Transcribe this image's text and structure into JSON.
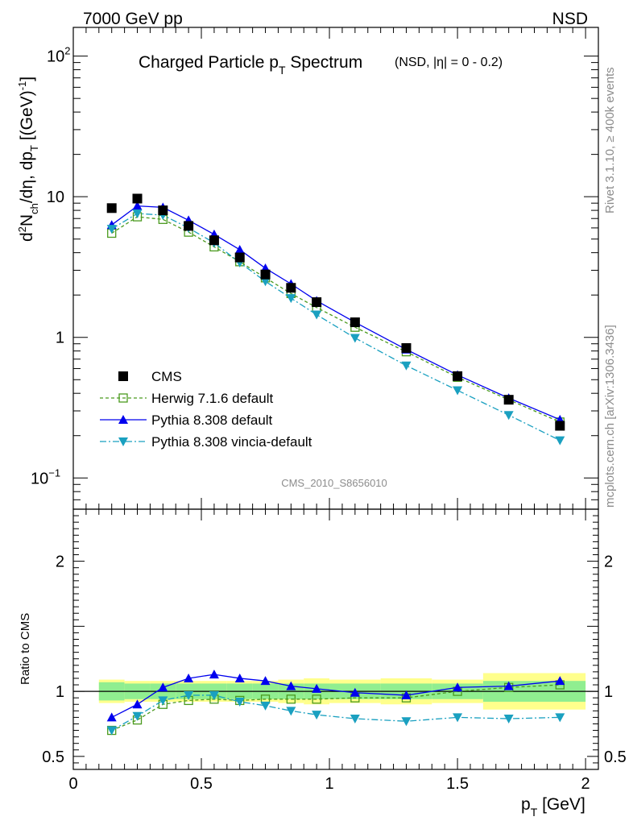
{
  "header": {
    "left": "7000 GeV pp",
    "right": "NSD"
  },
  "side_text": {
    "rivet": "Rivet 3.1.10, ≥ 400k events",
    "mcplots": "mcplots.cern.ch [arXiv:1306.3436]"
  },
  "chart_data": {
    "type": "line",
    "title_main": "Charged Particle p",
    "title_sub": "T",
    "title_main2": " Spectrum",
    "title_extra": "(NSD, |η| =   0 - 0.2)",
    "watermark": "CMS_2010_S8656010",
    "y_scale": "log",
    "ylim": [
      0.06,
      160
    ],
    "xlim": [
      0,
      2.05
    ],
    "ylabel": "d²N_ch/dη, dp_T [(GeV)⁻¹]",
    "xlabel": "p_T [GeV]",
    "x_ticks": [
      "0",
      "0.5",
      "1",
      "1.5",
      "2"
    ],
    "y_tick_labels": [
      "10",
      "1"
    ],
    "legend_position": "bottom-left",
    "x": [
      0.15,
      0.25,
      0.35,
      0.45,
      0.55,
      0.65,
      0.75,
      0.85,
      0.95,
      1.1,
      1.3,
      1.5,
      1.7,
      1.9
    ],
    "series": [
      {
        "name": "CMS",
        "color": "#000000",
        "marker": "square-filled",
        "values": [
          8.3,
          9.7,
          8.0,
          6.2,
          4.9,
          3.7,
          2.8,
          2.25,
          1.78,
          1.28,
          0.84,
          0.53,
          0.36,
          0.235
        ]
      },
      {
        "name": "Herwig 7.1.6 default",
        "color": "#4a9a1e",
        "marker": "square-open",
        "line": "dashed",
        "values": [
          5.5,
          7.2,
          6.9,
          5.6,
          4.4,
          3.45,
          2.65,
          2.05,
          1.63,
          1.18,
          0.79,
          0.52,
          0.36,
          0.25
        ]
      },
      {
        "name": "Pythia 8.308 default",
        "color": "#0000ee",
        "marker": "triangle-up",
        "line": "solid",
        "values": [
          6.3,
          8.6,
          8.4,
          6.8,
          5.4,
          4.2,
          3.1,
          2.4,
          1.82,
          1.28,
          0.82,
          0.54,
          0.37,
          0.26
        ]
      },
      {
        "name": "Pythia 8.308 vincia-default",
        "color": "#1aa0c0",
        "marker": "triangle-down",
        "line": "dashdot",
        "values": [
          5.9,
          7.6,
          7.4,
          6.0,
          4.7,
          3.4,
          2.5,
          1.9,
          1.45,
          0.99,
          0.63,
          0.42,
          0.28,
          0.185
        ]
      }
    ],
    "ratio": {
      "ylabel": "Ratio to CMS",
      "ylim": [
        0.4,
        2.4
      ],
      "y_ticks": [
        "0.5",
        "1",
        "2"
      ],
      "band_edges": [
        0.1,
        0.2,
        0.3,
        0.4,
        0.5,
        0.6,
        0.7,
        0.8,
        0.9,
        1.0,
        1.2,
        1.4,
        1.6,
        2.0
      ],
      "band_inner": [
        0.07,
        0.06,
        0.06,
        0.06,
        0.06,
        0.06,
        0.06,
        0.06,
        0.06,
        0.06,
        0.06,
        0.06,
        0.08
      ],
      "band_outer": [
        0.09,
        0.08,
        0.08,
        0.08,
        0.08,
        0.08,
        0.08,
        0.09,
        0.1,
        0.09,
        0.1,
        0.09,
        0.14
      ],
      "series": [
        {
          "name": "Herwig 7.1.6 default",
          "values": [
            0.7,
            0.78,
            0.9,
            0.93,
            0.94,
            0.93,
            0.94,
            0.94,
            0.94,
            0.95,
            0.95,
            1.0,
            1.03,
            1.05
          ]
        },
        {
          "name": "Pythia 8.308 default",
          "values": [
            0.8,
            0.9,
            1.03,
            1.1,
            1.13,
            1.1,
            1.08,
            1.04,
            1.02,
            0.99,
            0.97,
            1.03,
            1.04,
            1.08
          ]
        },
        {
          "name": "Pythia 8.308 vincia-default",
          "values": [
            0.7,
            0.81,
            0.93,
            0.97,
            0.97,
            0.92,
            0.89,
            0.85,
            0.82,
            0.79,
            0.77,
            0.8,
            0.79,
            0.8
          ]
        }
      ]
    }
  }
}
